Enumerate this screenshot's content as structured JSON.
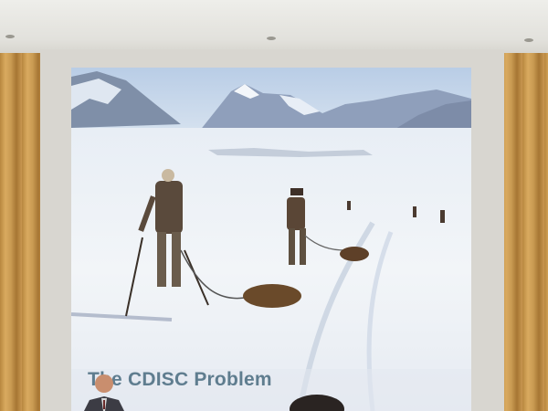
{
  "slide": {
    "title": "The CDISC Problem"
  }
}
